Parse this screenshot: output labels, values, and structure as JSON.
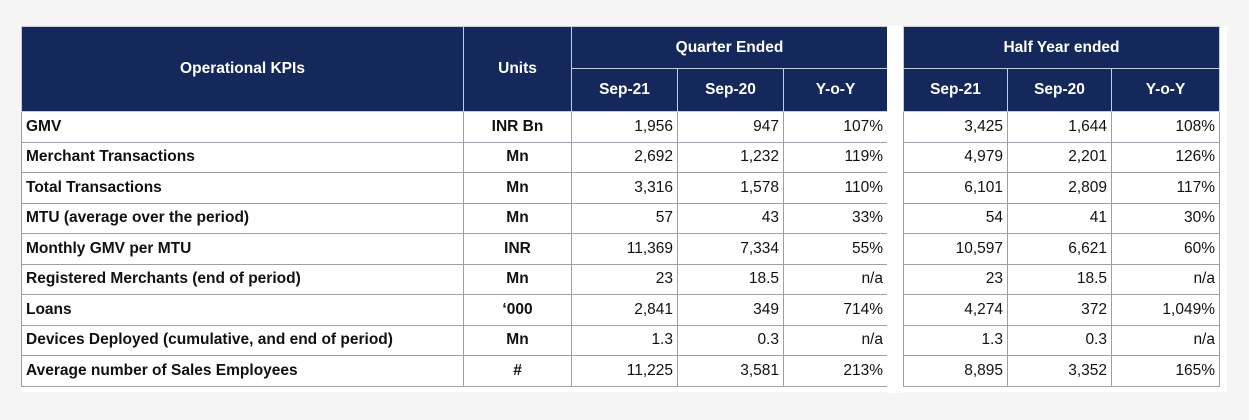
{
  "headers": {
    "kpi": "Operational KPIs",
    "units": "Units",
    "quarter_group": "Quarter Ended",
    "half_group": "Half Year ended",
    "quarter_cols": [
      "Sep-21",
      "Sep-20",
      "Y-o-Y"
    ],
    "half_cols": [
      "Sep-21",
      "Sep-20",
      "Y-o-Y"
    ]
  },
  "rows": [
    {
      "name": "GMV",
      "unit": "INR Bn",
      "q": [
        "1,956",
        "947",
        "107%"
      ],
      "h": [
        "3,425",
        "1,644",
        "108%"
      ]
    },
    {
      "name": "Merchant Transactions",
      "unit": "Mn",
      "q": [
        "2,692",
        "1,232",
        "119%"
      ],
      "h": [
        "4,979",
        "2,201",
        "126%"
      ]
    },
    {
      "name": "Total Transactions",
      "unit": "Mn",
      "q": [
        "3,316",
        "1,578",
        "110%"
      ],
      "h": [
        "6,101",
        "2,809",
        "117%"
      ]
    },
    {
      "name": "MTU (average over the period)",
      "unit": "Mn",
      "q": [
        "57",
        "43",
        "33%"
      ],
      "h": [
        "54",
        "41",
        "30%"
      ]
    },
    {
      "name": "Monthly GMV per MTU",
      "unit": "INR",
      "q": [
        "11,369",
        "7,334",
        "55%"
      ],
      "h": [
        "10,597",
        "6,621",
        "60%"
      ]
    },
    {
      "name": "Registered Merchants (end of period)",
      "unit": "Mn",
      "q": [
        "23",
        "18.5",
        "n/a"
      ],
      "h": [
        "23",
        "18.5",
        "n/a"
      ]
    },
    {
      "name": "Loans",
      "unit": "‘000",
      "q": [
        "2,841",
        "349",
        "714%"
      ],
      "h": [
        "4,274",
        "372",
        "1,049%"
      ]
    },
    {
      "name": "Devices Deployed (cumulative, and end of period)",
      "unit": "Mn",
      "q": [
        "1.3",
        "0.3",
        "n/a"
      ],
      "h": [
        "1.3",
        "0.3",
        "n/a"
      ]
    },
    {
      "name": "Average number of Sales Employees",
      "unit": "#",
      "q": [
        "11,225",
        "3,581",
        "213%"
      ],
      "h": [
        "8,895",
        "3,352",
        "165%"
      ]
    }
  ]
}
